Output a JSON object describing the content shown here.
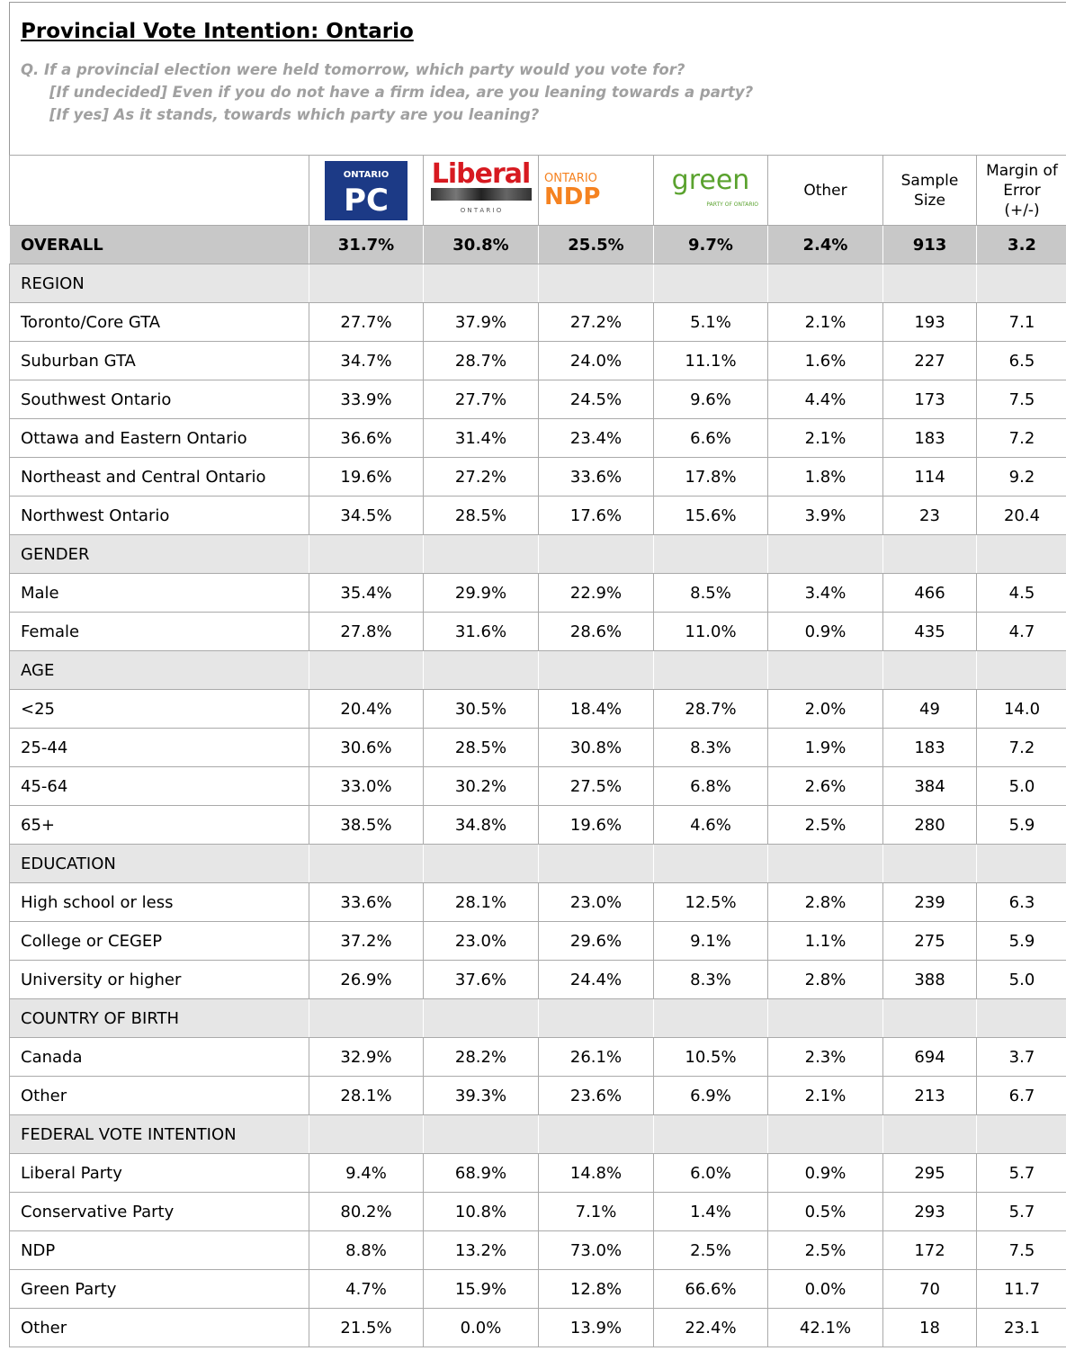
{
  "header": {
    "title": "Provincial Vote Intention: Ontario",
    "question": [
      "Q. If a provincial election were held tomorrow, which party would you vote for?",
      "[If undecided] Even if you do not have a firm idea, are you leaning towards a party?",
      "[If yes] As it stands, towards which party are you leaning?"
    ]
  },
  "table": {
    "logos": [
      {
        "top": "ONTARIO",
        "main": "PC"
      },
      {
        "main": "Liberal",
        "bottom": "O N T A R I O"
      },
      {
        "top": "ONTARIO",
        "main": "NDP"
      },
      {
        "main": "green",
        "bottom": "PARTY OF ONTARIO"
      }
    ],
    "columns": [
      "Other",
      "Sample Size",
      "Margin of Error (+/-)"
    ],
    "overall": [
      "OVERALL",
      "31.7%",
      "30.8%",
      "25.5%",
      "9.7%",
      "2.4%",
      "913",
      "3.2"
    ],
    "rows": [
      [
        "REGION"
      ],
      [
        "Toronto/Core GTA",
        "27.7%",
        "37.9%",
        "27.2%",
        "5.1%",
        "2.1%",
        "193",
        "7.1"
      ],
      [
        "Suburban GTA",
        "34.7%",
        "28.7%",
        "24.0%",
        "11.1%",
        "1.6%",
        "227",
        "6.5"
      ],
      [
        "Southwest Ontario",
        "33.9%",
        "27.7%",
        "24.5%",
        "9.6%",
        "4.4%",
        "173",
        "7.5"
      ],
      [
        "Ottawa and Eastern Ontario",
        "36.6%",
        "31.4%",
        "23.4%",
        "6.6%",
        "2.1%",
        "183",
        "7.2"
      ],
      [
        "Northeast and Central Ontario",
        "19.6%",
        "27.2%",
        "33.6%",
        "17.8%",
        "1.8%",
        "114",
        "9.2"
      ],
      [
        "Northwest Ontario",
        "34.5%",
        "28.5%",
        "17.6%",
        "15.6%",
        "3.9%",
        "23",
        "20.4"
      ],
      [
        "GENDER"
      ],
      [
        "Male",
        "35.4%",
        "29.9%",
        "22.9%",
        "8.5%",
        "3.4%",
        "466",
        "4.5"
      ],
      [
        "Female",
        "27.8%",
        "31.6%",
        "28.6%",
        "11.0%",
        "0.9%",
        "435",
        "4.7"
      ],
      [
        "AGE"
      ],
      [
        "<25",
        "20.4%",
        "30.5%",
        "18.4%",
        "28.7%",
        "2.0%",
        "49",
        "14.0"
      ],
      [
        "25-44",
        "30.6%",
        "28.5%",
        "30.8%",
        "8.3%",
        "1.9%",
        "183",
        "7.2"
      ],
      [
        "45-64",
        "33.0%",
        "30.2%",
        "27.5%",
        "6.8%",
        "2.6%",
        "384",
        "5.0"
      ],
      [
        "65+",
        "38.5%",
        "34.8%",
        "19.6%",
        "4.6%",
        "2.5%",
        "280",
        "5.9"
      ],
      [
        "EDUCATION"
      ],
      [
        "High school or less",
        "33.6%",
        "28.1%",
        "23.0%",
        "12.5%",
        "2.8%",
        "239",
        "6.3"
      ],
      [
        "College or CEGEP",
        "37.2%",
        "23.0%",
        "29.6%",
        "9.1%",
        "1.1%",
        "275",
        "5.9"
      ],
      [
        "University or higher",
        "26.9%",
        "37.6%",
        "24.4%",
        "8.3%",
        "2.8%",
        "388",
        "5.0"
      ],
      [
        "COUNTRY OF BIRTH"
      ],
      [
        "Canada",
        "32.9%",
        "28.2%",
        "26.1%",
        "10.5%",
        "2.3%",
        "694",
        "3.7"
      ],
      [
        "Other",
        "28.1%",
        "39.3%",
        "23.6%",
        "6.9%",
        "2.1%",
        "213",
        "6.7"
      ],
      [
        "FEDERAL VOTE INTENTION"
      ],
      [
        "Liberal Party",
        "9.4%",
        "68.9%",
        "14.8%",
        "6.0%",
        "0.9%",
        "295",
        "5.7"
      ],
      [
        "Conservative Party",
        "80.2%",
        "10.8%",
        "7.1%",
        "1.4%",
        "0.5%",
        "293",
        "5.7"
      ],
      [
        "NDP",
        "8.8%",
        "13.2%",
        "73.0%",
        "2.5%",
        "2.5%",
        "172",
        "7.5"
      ],
      [
        "Green Party",
        "4.7%",
        "15.9%",
        "12.8%",
        "66.6%",
        "0.0%",
        "70",
        "11.7"
      ],
      [
        "Other",
        "21.5%",
        "0.0%",
        "13.9%",
        "22.4%",
        "42.1%",
        "18",
        "23.1"
      ]
    ]
  }
}
